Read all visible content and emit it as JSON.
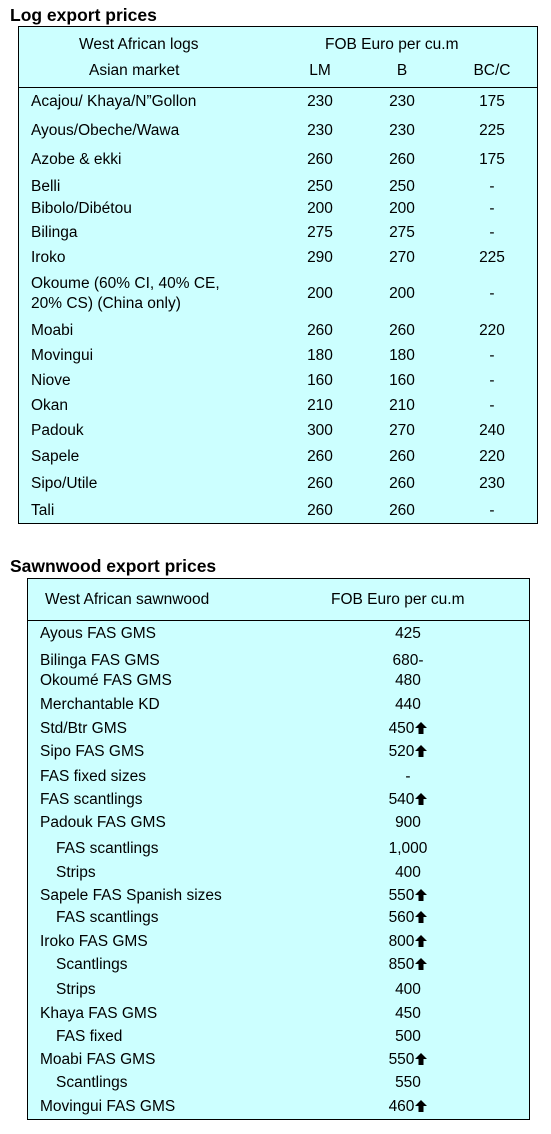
{
  "log_section": {
    "title": "Log export prices",
    "header": {
      "col1_line1": "West African logs",
      "col1_line2": "Asian market",
      "group_label": "FOB Euro per cu.m",
      "grades": [
        "LM",
        "B",
        "BC/C"
      ]
    },
    "rows": [
      {
        "name": "Acajou/ Khaya/N”Gollon",
        "lm": "230",
        "b": "230",
        "bcc": "175"
      },
      {
        "name": "Ayous/Obeche/Wawa",
        "lm": "230",
        "b": "230",
        "bcc": "225"
      },
      {
        "name": "Azobe & ekki",
        "lm": "260",
        "b": "260",
        "bcc": "175"
      },
      {
        "name": "Belli",
        "lm": "250",
        "b": "250",
        "bcc": "-"
      },
      {
        "name": "Bibolo/Dibétou",
        "lm": "200",
        "b": "200",
        "bcc": "-"
      },
      {
        "name": "Bilinga",
        "lm": "275",
        "b": "275",
        "bcc": "-"
      },
      {
        "name": "Iroko",
        "lm": "290",
        "b": "270",
        "bcc": "225"
      },
      {
        "name_line1": "Okoume (60% CI, 40% CE,",
        "name_line2": "20% CS) (China only)",
        "lm": "200",
        "b": "200",
        "bcc": "-"
      },
      {
        "name": "Moabi",
        "lm": "260",
        "b": "260",
        "bcc": "220"
      },
      {
        "name": "Movingui",
        "lm": "180",
        "b": "180",
        "bcc": "-"
      },
      {
        "name": "Niove",
        "lm": "160",
        "b": "160",
        "bcc": "-"
      },
      {
        "name": "Okan",
        "lm": "210",
        "b": "210",
        "bcc": "-"
      },
      {
        "name": "Padouk",
        "lm": "300",
        "b": "270",
        "bcc": "240"
      },
      {
        "name": "Sapele",
        "lm": "260",
        "b": "260",
        "bcc": "220"
      },
      {
        "name": "Sipo/Utile",
        "lm": "260",
        "b": "260",
        "bcc": "230"
      },
      {
        "name": "Tali",
        "lm": "260",
        "b": "260",
        "bcc": "-"
      }
    ]
  },
  "sawn_section": {
    "title": "Sawnwood export prices",
    "header": {
      "col1": "West African sawnwood",
      "col2": "FOB Euro per cu.m"
    },
    "rows": [
      {
        "name": "Ayous FAS GMS",
        "price": "425",
        "up": false,
        "indent": false
      },
      {
        "name": "Bilinga FAS GMS",
        "price": "680-",
        "up": false,
        "indent": false
      },
      {
        "name": "Okoumé FAS GMS",
        "price": "480",
        "up": false,
        "indent": false
      },
      {
        "name": "Merchantable KD",
        "price": "440",
        "up": false,
        "indent": false
      },
      {
        "name": "Std/Btr GMS",
        "price": "450",
        "up": true,
        "indent": false
      },
      {
        "name": "Sipo FAS GMS",
        "price": "520",
        "up": true,
        "indent": false
      },
      {
        "name": "FAS fixed sizes",
        "price": "-",
        "up": false,
        "indent": false
      },
      {
        "name": "FAS scantlings",
        "price": "540",
        "up": true,
        "indent": false
      },
      {
        "name": "Padouk FAS GMS",
        "price": "900",
        "up": false,
        "indent": false
      },
      {
        "name": "FAS scantlings",
        "price": "1,000",
        "up": false,
        "indent": true
      },
      {
        "name": "Strips",
        "price": "400",
        "up": false,
        "indent": true
      },
      {
        "name": "Sapele FAS Spanish sizes",
        "price": "550",
        "up": true,
        "indent": false
      },
      {
        "name": "FAS scantlings",
        "price": "560",
        "up": true,
        "indent": true
      },
      {
        "name": "Iroko FAS GMS",
        "price": "800",
        "up": true,
        "indent": false
      },
      {
        "name": "Scantlings",
        "price": "850",
        "up": true,
        "indent": true
      },
      {
        "name": "Strips",
        "price": "400",
        "up": false,
        "indent": true
      },
      {
        "name": "Khaya FAS GMS",
        "price": "450",
        "up": false,
        "indent": false
      },
      {
        "name": "FAS fixed",
        "price": "500",
        "up": false,
        "indent": true
      },
      {
        "name": "Moabi FAS GMS",
        "price": "550",
        "up": true,
        "indent": false
      },
      {
        "name": "Scantlings",
        "price": "550",
        "up": false,
        "indent": true
      },
      {
        "name": "Movingui FAS GMS",
        "price": "460",
        "up": true,
        "indent": false
      }
    ],
    "up_icon": "up-arrow-icon"
  }
}
